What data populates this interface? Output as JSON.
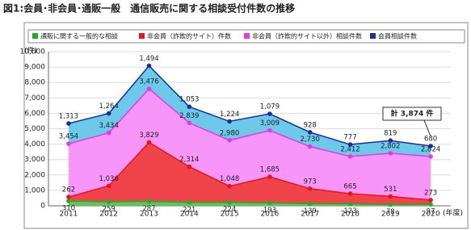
{
  "chart_data": {
    "type": "stacked-area",
    "title": "図1:会員･非会員･通販一般　通信販売に関する相談受付件数の推移",
    "y_label": "(件)",
    "x_label": "(年度)",
    "annotation": "計 3,874 件",
    "categories": [
      "2011",
      "2012",
      "2013",
      "2014",
      "2015",
      "2016",
      "2017",
      "2018",
      "2019",
      "2020"
    ],
    "series": [
      {
        "name": "通販に関する一般的な相談",
        "color": "#2aa82a",
        "fill": "#5cc65c",
        "values": [
          310,
          259,
          287,
          221,
          224,
          193,
          139,
          123,
          78,
          97
        ]
      },
      {
        "name": "非会員（詐欺的サイト）件数",
        "color": "#e8141c",
        "fill": "#f0444a",
        "values": [
          262,
          1036,
          3829,
          2314,
          1048,
          1685,
          973,
          665,
          531,
          273
        ],
        "value_labels": [
          "262",
          "1,036",
          "3,829",
          "2,314",
          "1,048",
          "1,685",
          "973",
          "665",
          "531",
          "273"
        ]
      },
      {
        "name": "非会員（詐欺的サイト以外）相談件数",
        "color": "#e03ce0",
        "fill": "#f895f8",
        "values": [
          3454,
          3434,
          3476,
          2839,
          2980,
          3009,
          2730,
          2412,
          2802,
          2824
        ],
        "value_labels": [
          "3,454",
          "3,434",
          "3,476",
          "2,839",
          "2,980",
          "3,009",
          "2,730",
          "2,412",
          "2,802",
          "2,824"
        ]
      },
      {
        "name": "会員相談件数",
        "color": "#1a2e9c",
        "fill": "#6cc9ea",
        "values": [
          1313,
          1264,
          1494,
          1053,
          1224,
          1079,
          928,
          777,
          819,
          680
        ],
        "value_labels": [
          "1,313",
          "1,264",
          "1,494",
          "1,053",
          "1,224",
          "1,079",
          "928",
          "777",
          "819",
          "680"
        ]
      }
    ],
    "ylim": [
      0,
      10000
    ],
    "yticks": [
      0,
      {
        "value": 1000,
        "label": "1,000"
      },
      {
        "value": 2000,
        "label": "2,000"
      },
      {
        "value": 3000,
        "label": "3,000"
      },
      {
        "value": 4000,
        "label": "4,000"
      },
      {
        "value": 5000,
        "label": "5,000"
      },
      {
        "value": 6000,
        "label": "6,000"
      },
      {
        "value": 7000,
        "label": "7,000"
      },
      {
        "value": 8000,
        "label": "8,000"
      },
      {
        "value": 9000,
        "label": "9,000"
      },
      {
        "value": 10000,
        "label": "10,000"
      }
    ],
    "grid": true
  }
}
